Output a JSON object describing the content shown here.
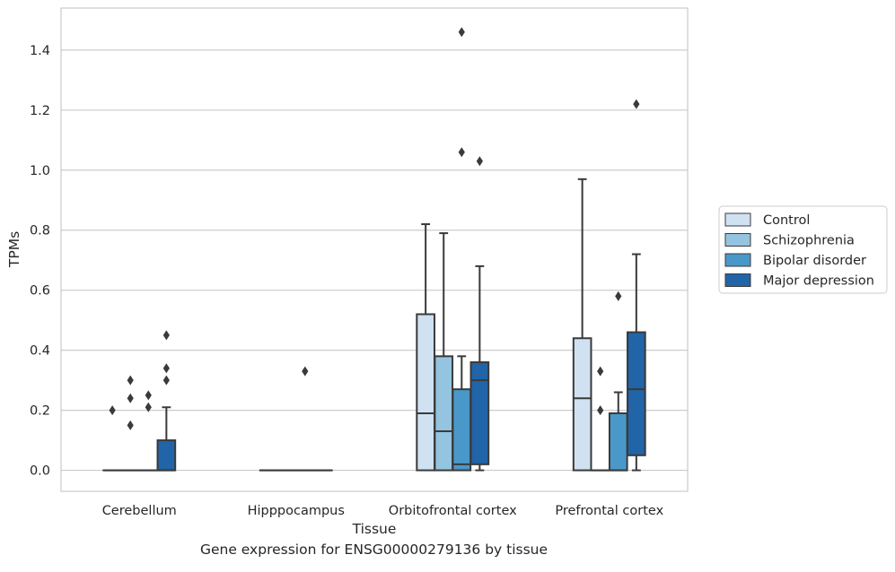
{
  "caption": "Gene expression for ENSG00000279136 by tissue",
  "chart_data": {
    "type": "box",
    "title": "",
    "xlabel": "Tissue",
    "ylabel": "TPMs",
    "ylim": [
      -0.07,
      1.54
    ],
    "yticks": [
      0.0,
      0.2,
      0.4,
      0.6,
      0.8,
      1.0,
      1.2,
      1.4
    ],
    "ytick_labels": [
      "0.0",
      "0.2",
      "0.4",
      "0.6",
      "0.8",
      "1.0",
      "1.2",
      "1.4"
    ],
    "grid": "horizontal",
    "legend_position": "right",
    "categories": [
      "Cerebellum",
      "Hipppocampus",
      "Orbitofrontal cortex",
      "Prefrontal cortex"
    ],
    "series": [
      {
        "name": "Control",
        "color": "#d0e1f2",
        "boxes": [
          {
            "q1": 0.0,
            "median": 0.0,
            "q3": 0.0,
            "whislo": 0.0,
            "whishi": 0.0,
            "fliers": [
              0.2
            ]
          },
          {
            "q1": 0.0,
            "median": 0.0,
            "q3": 0.0,
            "whislo": 0.0,
            "whishi": 0.0,
            "fliers": []
          },
          {
            "q1": 0.0,
            "median": 0.19,
            "q3": 0.52,
            "whislo": 0.0,
            "whishi": 0.82,
            "fliers": []
          },
          {
            "q1": 0.0,
            "median": 0.24,
            "q3": 0.44,
            "whislo": 0.0,
            "whishi": 0.97,
            "fliers": []
          }
        ]
      },
      {
        "name": "Schizophrenia",
        "color": "#94c4df",
        "boxes": [
          {
            "q1": 0.0,
            "median": 0.0,
            "q3": 0.0,
            "whislo": 0.0,
            "whishi": 0.0,
            "fliers": [
              0.15,
              0.24,
              0.3
            ]
          },
          {
            "q1": 0.0,
            "median": 0.0,
            "q3": 0.0,
            "whislo": 0.0,
            "whishi": 0.0,
            "fliers": []
          },
          {
            "q1": 0.0,
            "median": 0.13,
            "q3": 0.38,
            "whislo": 0.0,
            "whishi": 0.79,
            "fliers": []
          },
          {
            "q1": 0.0,
            "median": 0.0,
            "q3": 0.0,
            "whislo": 0.0,
            "whishi": 0.0,
            "fliers": [
              0.2,
              0.33
            ]
          }
        ]
      },
      {
        "name": "Bipolar disorder",
        "color": "#4a98c9",
        "boxes": [
          {
            "q1": 0.0,
            "median": 0.0,
            "q3": 0.0,
            "whislo": 0.0,
            "whishi": 0.0,
            "fliers": [
              0.21,
              0.25
            ]
          },
          {
            "q1": 0.0,
            "median": 0.0,
            "q3": 0.0,
            "whislo": 0.0,
            "whishi": 0.0,
            "fliers": [
              0.33
            ]
          },
          {
            "q1": 0.0,
            "median": 0.02,
            "q3": 0.27,
            "whislo": 0.0,
            "whishi": 0.38,
            "fliers": [
              1.06,
              1.46
            ]
          },
          {
            "q1": 0.0,
            "median": 0.0,
            "q3": 0.19,
            "whislo": 0.0,
            "whishi": 0.26,
            "fliers": [
              0.58
            ]
          }
        ]
      },
      {
        "name": "Major depression",
        "color": "#2264a8",
        "boxes": [
          {
            "q1": 0.0,
            "median": 0.0,
            "q3": 0.1,
            "whislo": 0.0,
            "whishi": 0.21,
            "fliers": [
              0.3,
              0.34,
              0.45
            ]
          },
          {
            "q1": 0.0,
            "median": 0.0,
            "q3": 0.0,
            "whislo": 0.0,
            "whishi": 0.0,
            "fliers": []
          },
          {
            "q1": 0.02,
            "median": 0.3,
            "q3": 0.36,
            "whislo": 0.0,
            "whishi": 0.68,
            "fliers": [
              1.03
            ]
          },
          {
            "q1": 0.05,
            "median": 0.27,
            "q3": 0.46,
            "whislo": 0.0,
            "whishi": 0.72,
            "fliers": [
              1.22
            ]
          }
        ]
      }
    ]
  }
}
